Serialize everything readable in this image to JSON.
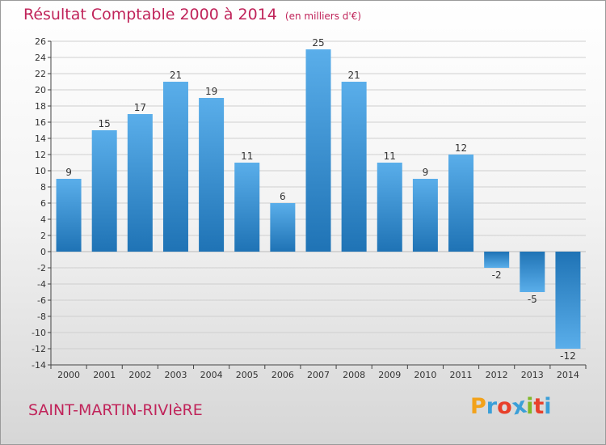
{
  "title": "Résultat Comptable 2000 à 2014",
  "unit_note": "(en milliers d'€)",
  "commune": "SAINT-MARTIN-RIVIèRE",
  "brand": {
    "letters": [
      "P",
      "r",
      "o",
      "x",
      "i",
      "t",
      "i"
    ],
    "colors": [
      "#f2a21a",
      "#3a9fd8",
      "#e8402a",
      "#3a9fd8",
      "#80b828",
      "#e8402a",
      "#3a9fd8"
    ]
  },
  "colors": {
    "bar_light": "#5aaeea",
    "bar_dark": "#1f73b5",
    "title": "#c0245a",
    "grid": "#cfcfcf"
  },
  "chart_data": {
    "type": "bar",
    "title": "Résultat Comptable 2000 à 2014",
    "subtitle": "(en milliers d'€)",
    "xlabel": "",
    "ylabel": "",
    "categories": [
      "2000",
      "2001",
      "2002",
      "2003",
      "2004",
      "2005",
      "2006",
      "2007",
      "2008",
      "2009",
      "2010",
      "2011",
      "2012",
      "2013",
      "2014"
    ],
    "values": [
      9,
      15,
      17,
      21,
      19,
      11,
      6,
      25,
      21,
      11,
      9,
      12,
      -2,
      -5,
      -12
    ],
    "ylim": [
      -14,
      26
    ],
    "yticks": [
      -14,
      -12,
      -10,
      -8,
      -6,
      -4,
      -2,
      0,
      2,
      4,
      6,
      8,
      10,
      12,
      14,
      16,
      18,
      20,
      22,
      24,
      26
    ],
    "grid": true,
    "legend": "none"
  }
}
